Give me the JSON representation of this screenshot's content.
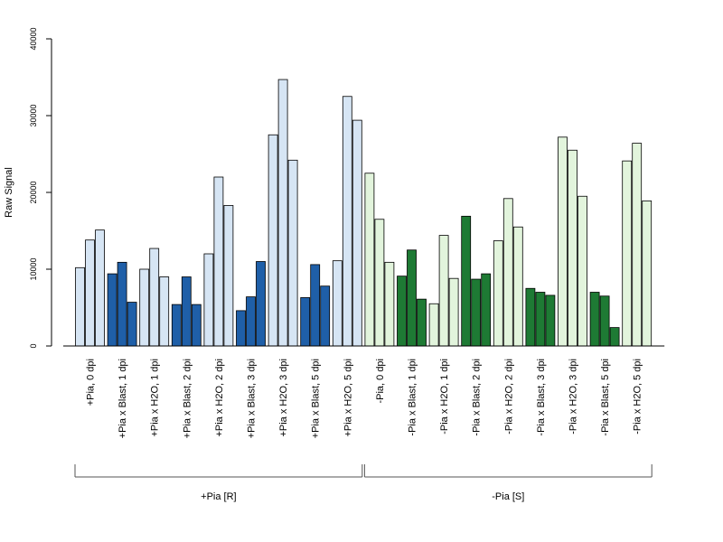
{
  "chart_data": {
    "type": "bar",
    "title": "",
    "xlabel": "",
    "ylabel": "Raw Signal",
    "ylim": [
      0,
      40000
    ],
    "yticks": [
      "0",
      "10000",
      "20000",
      "30000",
      "40000"
    ],
    "grid": false,
    "legend": "none",
    "colors": {
      "dark_blue": "#1f5fa8",
      "light_blue": "#d6e5f4",
      "dark_green": "#1e7a34",
      "light_green": "#e2f4dc",
      "bar_border": "#000000",
      "axis": "#000000",
      "bracket": "#555555"
    },
    "categories": [
      {
        "label": "+Pia, 0 dpi",
        "values": [
          10200,
          13800,
          15100
        ],
        "color": "light_blue"
      },
      {
        "label": "+Pia x Blast, 1 dpi",
        "values": [
          9400,
          10900,
          5700
        ],
        "color": "dark_blue"
      },
      {
        "label": "+Pia x H2O, 1 dpi",
        "values": [
          10000,
          12700,
          9000
        ],
        "color": "light_blue"
      },
      {
        "label": "+Pia x Blast, 2 dpi",
        "values": [
          5400,
          9000,
          5400
        ],
        "color": "dark_blue"
      },
      {
        "label": "+Pia x H2O, 2 dpi",
        "values": [
          12000,
          22000,
          18300
        ],
        "color": "light_blue"
      },
      {
        "label": "+Pia x Blast, 3 dpi",
        "values": [
          4600,
          6400,
          11000
        ],
        "color": "dark_blue"
      },
      {
        "label": "+Pia x H2O, 3 dpi",
        "values": [
          27500,
          34700,
          24200
        ],
        "color": "light_blue"
      },
      {
        "label": "+Pia x Blast, 5 dpi",
        "values": [
          6300,
          10600,
          7800
        ],
        "color": "dark_blue"
      },
      {
        "label": "+Pia x H2O, 5 dpi",
        "values": [
          11100,
          32500,
          29400
        ],
        "color": "light_blue"
      },
      {
        "label": "-Pia, 0 dpi",
        "values": [
          22500,
          16500,
          10900
        ],
        "color": "light_green"
      },
      {
        "label": "-Pia x Blast, 1 dpi",
        "values": [
          9100,
          12500,
          6100
        ],
        "color": "dark_green"
      },
      {
        "label": "-Pia x H2O, 1 dpi",
        "values": [
          5500,
          14400,
          8800
        ],
        "color": "light_green"
      },
      {
        "label": "-Pia x Blast, 2 dpi",
        "values": [
          16900,
          8700,
          9400
        ],
        "color": "dark_green"
      },
      {
        "label": "-Pia x H2O, 2 dpi",
        "values": [
          13700,
          19200,
          15500
        ],
        "color": "light_green"
      },
      {
        "label": "-Pia x Blast, 3 dpi",
        "values": [
          7500,
          7000,
          6600
        ],
        "color": "dark_green"
      },
      {
        "label": "-Pia x H2O, 3 dpi",
        "values": [
          27200,
          25500,
          19500
        ],
        "color": "light_green"
      },
      {
        "label": "-Pia x Blast, 5 dpi",
        "values": [
          7000,
          6500,
          2400
        ],
        "color": "dark_green"
      },
      {
        "label": "-Pia x H2O, 5 dpi",
        "values": [
          24100,
          26400,
          18900
        ],
        "color": "light_green"
      }
    ],
    "groups": [
      {
        "label": "+Pia [R]",
        "first": 0,
        "last": 8
      },
      {
        "label": "-Pia [S]",
        "first": 9,
        "last": 17
      }
    ]
  }
}
